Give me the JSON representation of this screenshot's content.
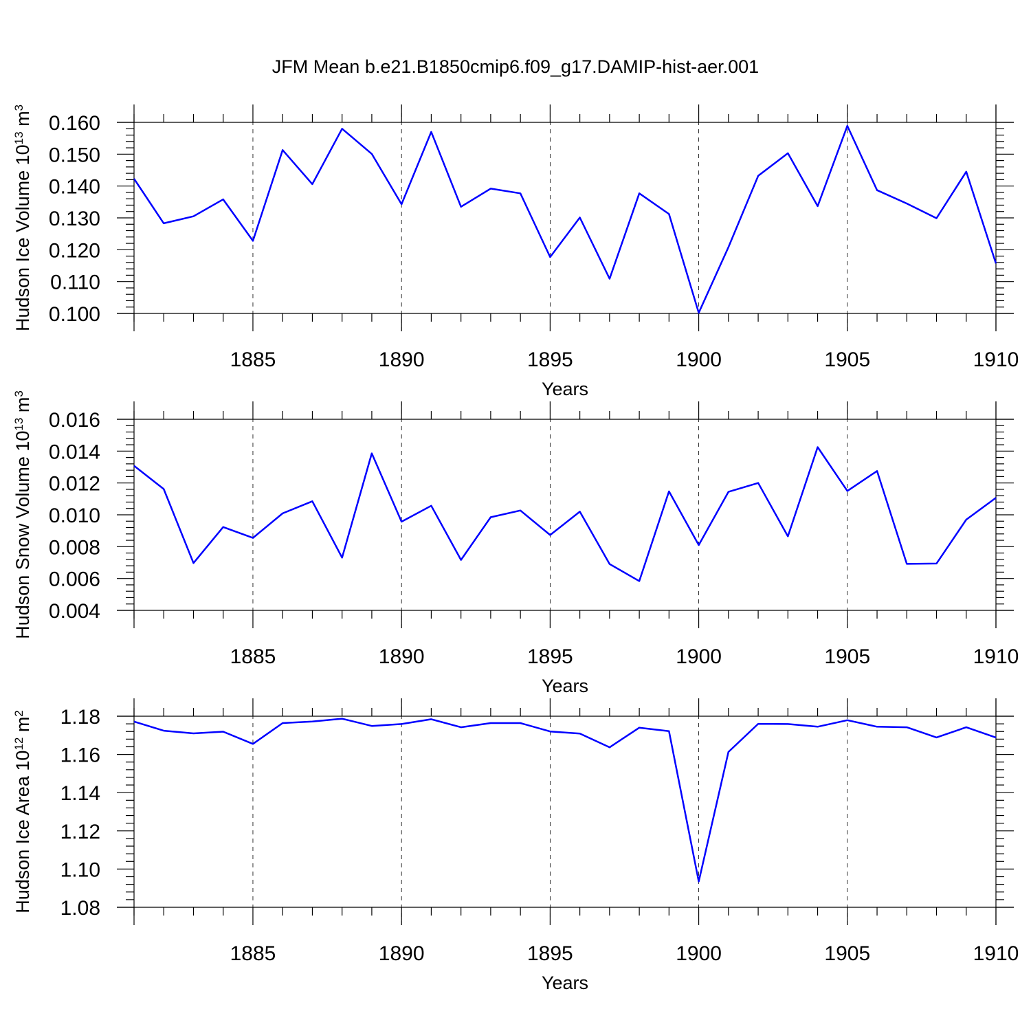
{
  "chart_data": [
    {
      "type": "line",
      "title": "JFM Mean b.e21.B1850cmip6.f09_g17.DAMIP-hist-aer.001",
      "xlabel": "Years",
      "ylabel_main": "Hudson Ice Volume 10",
      "ylabel_exp": "13",
      "ylabel_unit": " m",
      "ylabel_unit_exp": "3",
      "xlim": [
        1881,
        1910
      ],
      "ylim": [
        0.1,
        0.16
      ],
      "y_major_ticks": [
        0.1,
        0.11,
        0.12,
        0.13,
        0.14,
        0.15,
        0.16
      ],
      "y_tick_labels": [
        "0.100",
        "0.110",
        "0.120",
        "0.130",
        "0.140",
        "0.150",
        "0.160"
      ],
      "x_tick_labels": [
        "1885",
        "1890",
        "1895",
        "1900",
        "1905",
        "1910"
      ],
      "grid": "vertical dashed at labeled years",
      "series": [
        {
          "name": "Hudson Ice Volume",
          "color": "#0000ff",
          "x": [
            1881,
            1882,
            1883,
            1884,
            1885,
            1886,
            1887,
            1888,
            1889,
            1890,
            1891,
            1892,
            1893,
            1894,
            1895,
            1896,
            1897,
            1898,
            1899,
            1900,
            1901,
            1902,
            1903,
            1904,
            1905,
            1906,
            1907,
            1908,
            1909,
            1910
          ],
          "values": [
            0.1423,
            0.1283,
            0.1305,
            0.1358,
            0.1228,
            0.1513,
            0.1406,
            0.158,
            0.1501,
            0.1343,
            0.157,
            0.1335,
            0.1392,
            0.1377,
            0.1177,
            0.1301,
            0.1109,
            0.1377,
            0.1312,
            0.1002,
            0.1208,
            0.1432,
            0.1503,
            0.1337,
            0.1589,
            0.1387,
            0.1345,
            0.1299,
            0.1445,
            0.1157
          ]
        }
      ]
    },
    {
      "type": "line",
      "title": "",
      "xlabel": "Years",
      "ylabel_main": "Hudson Snow Volume 10",
      "ylabel_exp": "13",
      "ylabel_unit": " m",
      "ylabel_unit_exp": "3",
      "xlim": [
        1881,
        1910
      ],
      "ylim": [
        0.004,
        0.016
      ],
      "y_major_ticks": [
        0.004,
        0.006,
        0.008,
        0.01,
        0.012,
        0.014,
        0.016
      ],
      "y_tick_labels": [
        "0.004",
        "0.006",
        "0.008",
        "0.010",
        "0.012",
        "0.014",
        "0.016"
      ],
      "x_tick_labels": [
        "1885",
        "1890",
        "1895",
        "1900",
        "1905",
        "1910"
      ],
      "grid": "vertical dashed at labeled years",
      "series": [
        {
          "name": "Hudson Snow Volume",
          "color": "#0000ff",
          "x": [
            1881,
            1882,
            1883,
            1884,
            1885,
            1886,
            1887,
            1888,
            1889,
            1890,
            1891,
            1892,
            1893,
            1894,
            1895,
            1896,
            1897,
            1898,
            1899,
            1900,
            1901,
            1902,
            1903,
            1904,
            1905,
            1906,
            1907,
            1908,
            1909,
            1910
          ],
          "values": [
            0.01308,
            0.01162,
            0.00697,
            0.00923,
            0.00855,
            0.01009,
            0.01085,
            0.00731,
            0.01386,
            0.00957,
            0.01057,
            0.00717,
            0.00985,
            0.01027,
            0.00873,
            0.0102,
            0.00691,
            0.00584,
            0.01147,
            0.0081,
            0.01144,
            0.012,
            0.00865,
            0.01425,
            0.0115,
            0.01275,
            0.00692,
            0.00694,
            0.0097,
            0.01107
          ]
        }
      ]
    },
    {
      "type": "line",
      "title": "",
      "xlabel": "Years",
      "ylabel_main": "Hudson Ice Area 10",
      "ylabel_exp": "12",
      "ylabel_unit": " m",
      "ylabel_unit_exp": "2",
      "xlim": [
        1881,
        1910
      ],
      "ylim": [
        1.08,
        1.18
      ],
      "y_major_ticks": [
        1.08,
        1.1,
        1.12,
        1.14,
        1.16,
        1.18
      ],
      "y_tick_labels": [
        "1.08",
        "1.10",
        "1.12",
        "1.14",
        "1.16",
        "1.18"
      ],
      "x_tick_labels": [
        "1885",
        "1890",
        "1895",
        "1900",
        "1905",
        "1910"
      ],
      "grid": "vertical dashed at labeled years",
      "series": [
        {
          "name": "Hudson Ice Area",
          "color": "#0000ff",
          "x": [
            1881,
            1882,
            1883,
            1884,
            1885,
            1886,
            1887,
            1888,
            1889,
            1890,
            1891,
            1892,
            1893,
            1894,
            1895,
            1896,
            1897,
            1898,
            1899,
            1900,
            1901,
            1902,
            1903,
            1904,
            1905,
            1906,
            1907,
            1908,
            1909,
            1910
          ],
          "values": [
            1.1772,
            1.1724,
            1.171,
            1.1719,
            1.1655,
            1.1764,
            1.1772,
            1.1787,
            1.1749,
            1.1759,
            1.1784,
            1.1742,
            1.1764,
            1.1764,
            1.172,
            1.1709,
            1.1637,
            1.174,
            1.1722,
            1.0935,
            1.1613,
            1.176,
            1.1759,
            1.1745,
            1.1779,
            1.1745,
            1.1742,
            1.1689,
            1.1742,
            1.1688
          ]
        }
      ]
    }
  ]
}
